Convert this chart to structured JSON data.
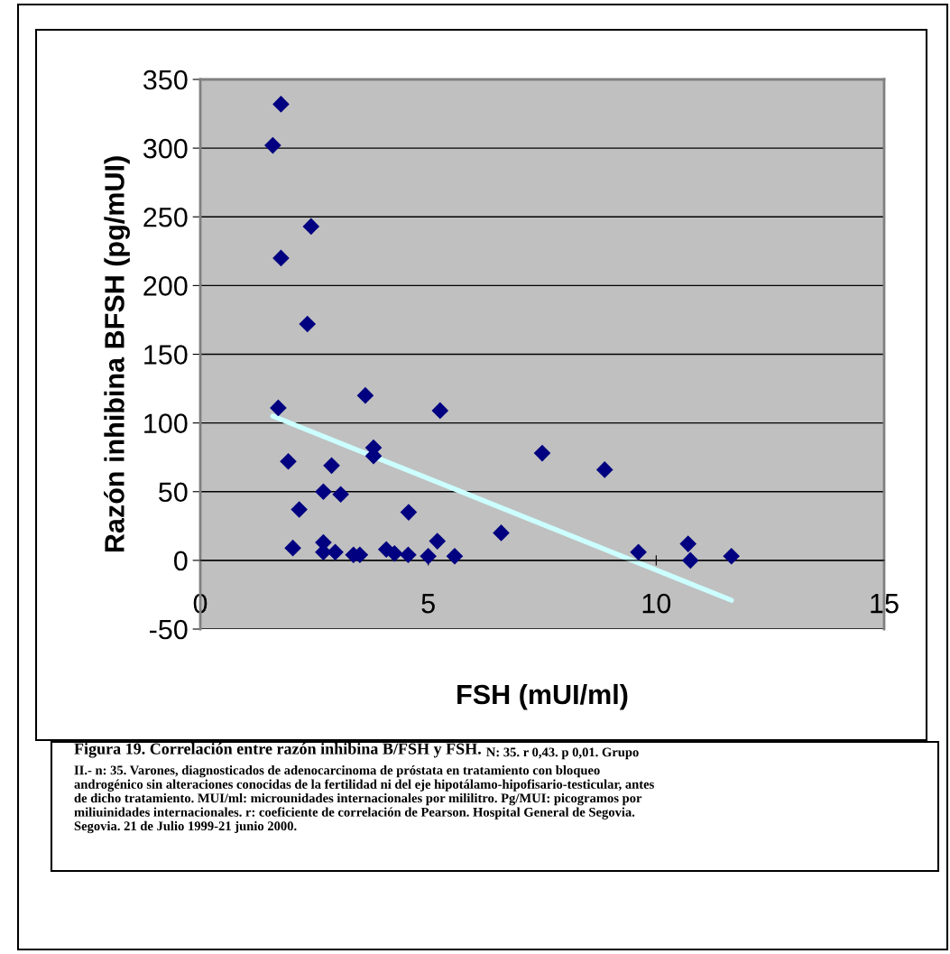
{
  "chart_data": {
    "type": "scatter",
    "xlabel": "FSH (mUI/ml)",
    "ylabel": "Razón inhibina BFSH (pg/mUI)",
    "xlim": [
      0,
      15
    ],
    "xticks": [
      0,
      5,
      10,
      15
    ],
    "ylim": [
      -50,
      350
    ],
    "yticks": [
      -50,
      0,
      50,
      100,
      150,
      200,
      250,
      300,
      350
    ],
    "grid": "y",
    "marker": "diamond",
    "series": [
      {
        "color": "#000080",
        "x": [
          1.59,
          1.77,
          1.77,
          2.43,
          2.35,
          1.71,
          1.93,
          2.17,
          2.03,
          2.7,
          2.88,
          3.08,
          2.7,
          2.7,
          2.96,
          3.36,
          3.5,
          3.62,
          3.8,
          3.8,
          4.57,
          4.08,
          4.26,
          4.56,
          5.0,
          5.26,
          5.2,
          5.58,
          6.6,
          7.5,
          8.87,
          9.61,
          10.7,
          10.75,
          11.65
        ],
        "values": [
          302,
          332,
          220,
          243,
          172,
          111,
          72,
          37,
          9,
          50,
          69,
          48,
          13,
          6,
          6,
          4,
          4,
          120,
          82,
          76,
          35,
          8,
          5,
          4,
          3,
          109,
          14,
          3,
          20,
          78,
          66,
          6,
          12,
          0,
          3
        ]
      },
      {
        "type": "line",
        "marker": "none",
        "color": "#ccffff",
        "x": [
          1.59,
          11.65
        ],
        "values": [
          105,
          -29
        ]
      }
    ],
    "annotations": [
      "Figura 19. Correlación entre razón inhibina B/FSH y FSH.",
      "N: 35. r 0,43. p 0,01. Grupo\nII.- n: 35. Varones, diagnosticados de adenocarcinoma de próstata en tratamiento con bloqueo\nandrogénico sin alteraciones conocidas de la fertilidad ni del eje hipotálamo-hipofisario-testicular, antes\nde dicho tratamiento. MUI/ml: microunidades internacionales por mililitro. Pg/MUI: picogramos por\nmiliuinidades internacionales. r: coeficiente de correlación de Pearson. Hospital General de Segovia.\nSegovia. 21 de Julio 1999-21 junio 2000."
    ]
  }
}
